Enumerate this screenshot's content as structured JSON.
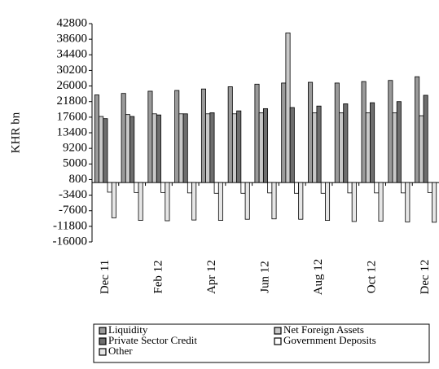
{
  "chart_data": {
    "type": "bar",
    "y_label": "KHR bn",
    "categories": [
      "Dec 11",
      null,
      "Feb 12",
      null,
      "Apr 12",
      null,
      "Jun 12",
      null,
      "Aug 12",
      null,
      "Oct 12",
      null,
      "Dec 12"
    ],
    "series": [
      {
        "name": "Liquidity",
        "color": "#9a9a9a",
        "values": [
          23600,
          24000,
          24600,
          24800,
          25200,
          25800,
          26500,
          26800,
          27000,
          26800,
          27200,
          27500,
          28500
        ]
      },
      {
        "name": "Net Foreign Assets",
        "color": "#c8c8c8",
        "values": [
          17800,
          18300,
          18500,
          18500,
          18500,
          18500,
          18800,
          40300,
          18800,
          18800,
          18800,
          18800,
          18000
        ]
      },
      {
        "name": "Private Sector Credit",
        "color": "#6e6e6e",
        "values": [
          17200,
          17800,
          18200,
          18500,
          18800,
          19300,
          19900,
          20200,
          20600,
          21200,
          21500,
          21800,
          23500
        ]
      },
      {
        "name": "Government Deposits",
        "color": "#ffffff",
        "values": [
          -2600,
          -2700,
          -2700,
          -2800,
          -2900,
          -2900,
          -2800,
          -2900,
          -2900,
          -2800,
          -2800,
          -2800,
          -2700
        ]
      },
      {
        "name": "Other",
        "color": "#e6e6e6",
        "values": [
          -9500,
          -10200,
          -10300,
          -10100,
          -10200,
          -9900,
          -9800,
          -9900,
          -10200,
          -10500,
          -10400,
          -10600,
          -10700
        ]
      }
    ],
    "ylim": [
      -16000,
      42800
    ],
    "yticks": [
      -16000,
      -11800,
      -7600,
      -3400,
      800,
      5000,
      9200,
      13400,
      17600,
      21800,
      26000,
      30200,
      34400,
      38600,
      42800
    ]
  }
}
